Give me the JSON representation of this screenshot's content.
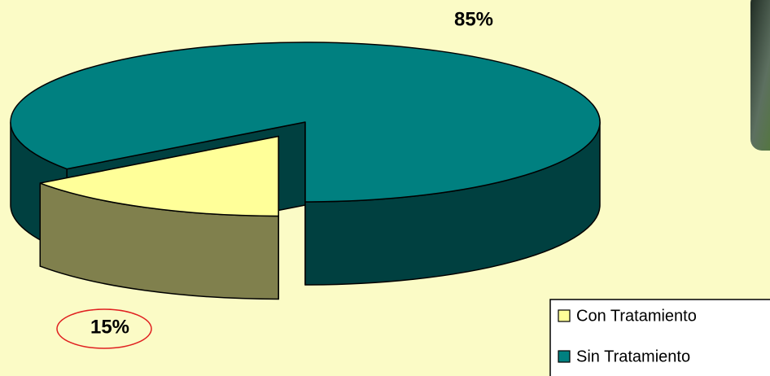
{
  "chart_data": {
    "type": "pie",
    "categories": [
      "Con Tratamiento",
      "Sin Tratamiento"
    ],
    "values": [
      15,
      85
    ],
    "value_labels": [
      "15%",
      "85%"
    ],
    "colors": [
      "#ffff99",
      "#008080"
    ],
    "legend": "lower right"
  }
}
